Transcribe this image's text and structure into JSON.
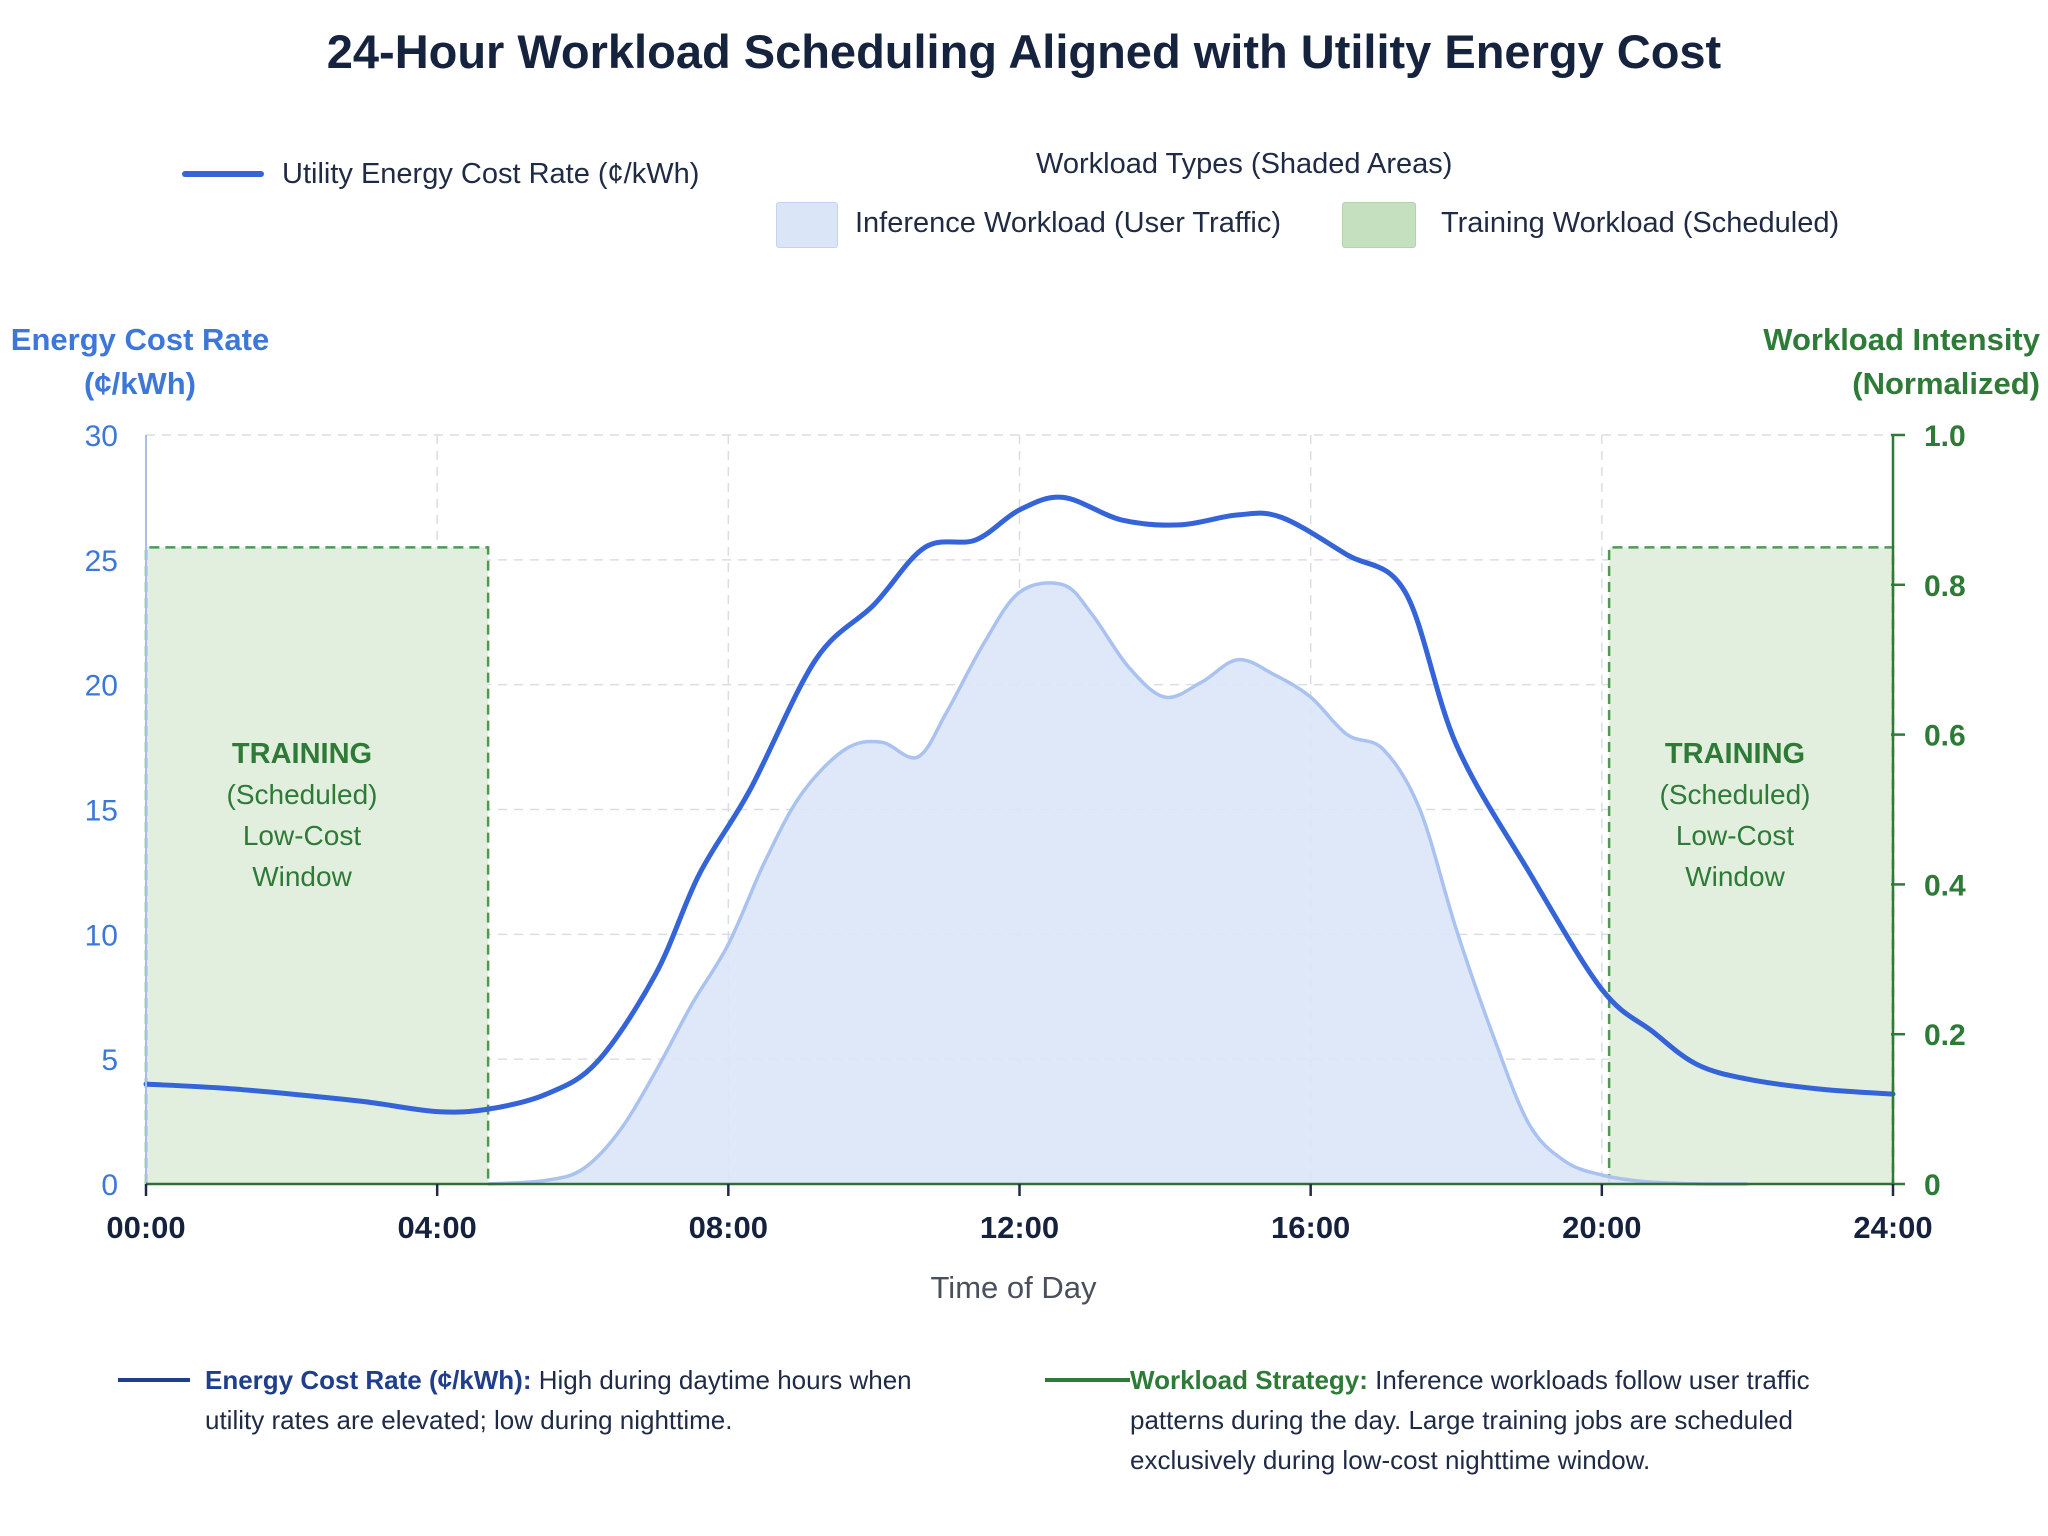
{
  "title": "24-Hour Workload Scheduling Aligned with Utility Energy Cost",
  "legend": {
    "cost_line_label": "Utility Energy Cost Rate (¢/kWh)",
    "workload_group_title": "Workload Types (Shaded Areas)",
    "inference_label": "Inference Workload (User Traffic)",
    "training_label": "Training Workload (Scheduled)"
  },
  "axes": {
    "left_title_line1": "Energy Cost Rate",
    "left_title_line2": "(¢/kWh)",
    "right_title_line1": "Workload Intensity",
    "right_title_line2": "(Normalized)",
    "x_title": "Time of Day"
  },
  "annotations": {
    "training_line1": "TRAINING",
    "training_line2": "(Scheduled)",
    "training_line3": "Low-Cost",
    "training_line4": "Window"
  },
  "notes": {
    "cost_heading": "Energy Cost Rate (¢/kWh):",
    "cost_text": "High during daytime hours when utility rates are elevated; low during nighttime.",
    "strategy_heading": "Workload Strategy:",
    "strategy_text": "Inference workloads follow user traffic patterns during the day. Large training jobs are scheduled exclusively during low-cost nighttime window."
  },
  "colors": {
    "cost_line": "#3464d8",
    "inference_fill": "#dbe5f8",
    "inference_stroke": "#a9c2f0",
    "training_fill": "#e3efde",
    "training_stroke": "#4e9a55",
    "left_axis": "#3d78d8",
    "right_axis": "#2e7a37",
    "note_dark_blue": "#1f3e8c"
  },
  "chart_data": {
    "type": "line",
    "x_unit": "hour of day",
    "x_tick_labels": [
      "00:00",
      "04:00",
      "08:00",
      "12:00",
      "16:00",
      "20:00",
      "24:00"
    ],
    "x_ticks": [
      0,
      4,
      8,
      12,
      16,
      20,
      24
    ],
    "xlim": [
      0,
      24
    ],
    "ylim_left": [
      0,
      30
    ],
    "yticks_left": [
      0,
      5,
      10,
      15,
      20,
      25,
      30
    ],
    "ylim_right": [
      0,
      1.0
    ],
    "yticks_right": [
      0,
      0.2,
      0.4,
      0.6,
      0.8,
      1.0
    ],
    "ytick_labels_right": [
      "0",
      "0.2",
      "0.4",
      "0.6",
      "0.8",
      "1.0"
    ],
    "grid": true,
    "series": [
      {
        "name": "Utility Energy Cost Rate (¢/kWh)",
        "axis": "left",
        "kind": "line",
        "x": [
          0,
          1,
          2,
          3,
          4,
          4.7,
          5.5,
          6.2,
          7,
          7.6,
          8.3,
          9.2,
          10,
          10.7,
          11.4,
          12,
          12.6,
          13.4,
          14.2,
          15,
          15.6,
          16.5,
          17.3,
          18,
          19,
          20,
          20.7,
          21.3,
          22,
          23,
          24
        ],
        "y": [
          4,
          3.85,
          3.6,
          3.3,
          2.9,
          3.0,
          3.6,
          4.9,
          8.4,
          12.4,
          15.8,
          21,
          23.2,
          25.5,
          25.8,
          27,
          27.5,
          26.6,
          26.4,
          26.8,
          26.7,
          25.2,
          23.7,
          17.6,
          12.5,
          7.8,
          6.1,
          4.8,
          4.2,
          3.8,
          3.6
        ]
      },
      {
        "name": "Inference Workload (User Traffic)",
        "axis": "right",
        "kind": "area",
        "x": [
          4.7,
          5.5,
          6,
          6.5,
          7,
          7.5,
          8,
          8.5,
          9,
          9.6,
          10.1,
          10.6,
          11,
          11.5,
          12,
          12.6,
          13,
          13.5,
          14,
          14.5,
          15,
          15.5,
          16,
          16.5,
          17,
          17.5,
          18,
          18.5,
          19,
          19.5,
          20,
          20.5,
          21,
          21.5,
          22
        ],
        "y": [
          0,
          0.005,
          0.02,
          0.07,
          0.15,
          0.24,
          0.32,
          0.43,
          0.52,
          0.58,
          0.59,
          0.57,
          0.63,
          0.72,
          0.79,
          0.8,
          0.76,
          0.69,
          0.65,
          0.67,
          0.7,
          0.68,
          0.65,
          0.6,
          0.58,
          0.5,
          0.34,
          0.2,
          0.08,
          0.03,
          0.012,
          0.004,
          0.001,
          0,
          0
        ]
      },
      {
        "name": "Training Workload (Scheduled)",
        "axis": "right",
        "kind": "area",
        "segments": [
          {
            "x_start": 0,
            "x_end": 4.7,
            "value": 0.85
          },
          {
            "x_start": 20.1,
            "x_end": 24,
            "value": 0.85
          }
        ]
      }
    ]
  }
}
